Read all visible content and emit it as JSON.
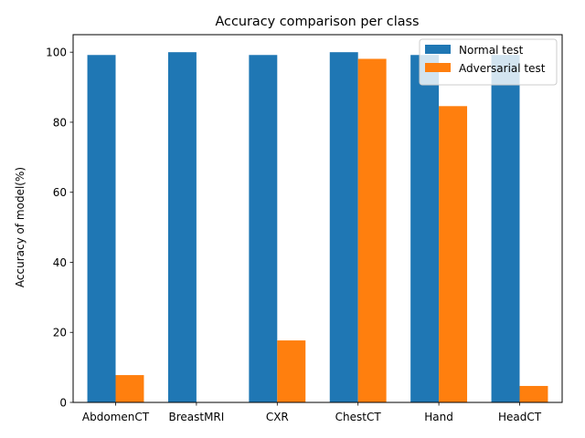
{
  "chart_data": {
    "type": "bar",
    "title": "Accuracy comparison per class",
    "xlabel": "",
    "ylabel": "Accuracy of model(%)",
    "categories": [
      "AbdomenCT",
      "BreastMRI",
      "CXR",
      "ChestCT",
      "Hand",
      "HeadCT"
    ],
    "series": [
      {
        "name": "Normal test",
        "color": "#1f77b4",
        "values": [
          99.2,
          100.0,
          99.2,
          100.0,
          99.2,
          99.2
        ]
      },
      {
        "name": "Adversarial test",
        "color": "#ff7f0e",
        "values": [
          7.8,
          0.0,
          17.7,
          98.1,
          84.6,
          4.7
        ]
      }
    ],
    "ylim": [
      0,
      105
    ],
    "yticks": [
      0,
      20,
      40,
      60,
      80,
      100
    ],
    "grid": false,
    "legend_position": "top-right"
  }
}
